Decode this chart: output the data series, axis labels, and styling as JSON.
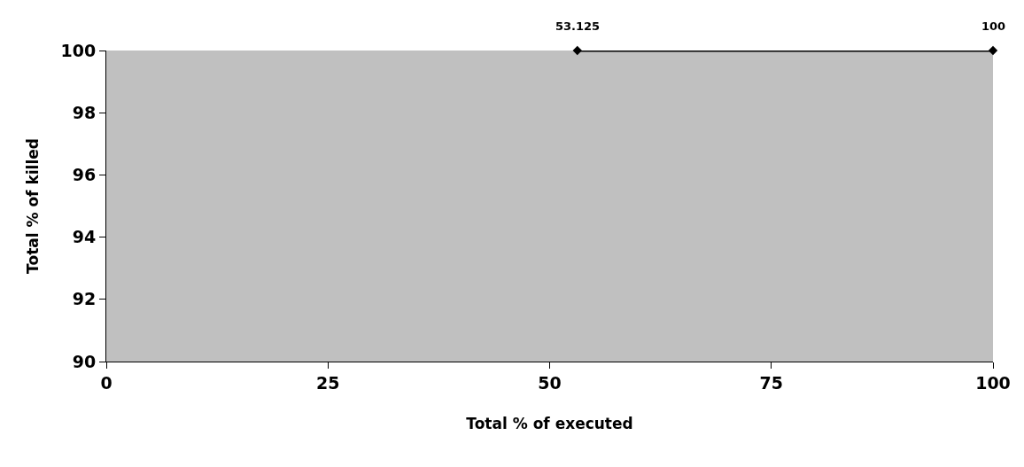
{
  "chart_data": {
    "type": "line",
    "xlabel": "Total % of executed",
    "ylabel": "Total % of killed",
    "x": [
      53.125,
      100
    ],
    "series": [
      {
        "color": "#000000",
        "values": [
          100,
          100
        ]
      }
    ],
    "annotations": [
      {
        "text": "53.125",
        "x": 53.125,
        "y": 100
      },
      {
        "text": "100",
        "x": 100,
        "y": 100
      }
    ],
    "xlim": [
      0,
      100
    ],
    "xticks": [
      0,
      25,
      50,
      75,
      100
    ],
    "ylim": [
      90,
      100
    ],
    "yticks": [
      90,
      92,
      94,
      96,
      98,
      100
    ],
    "grid": false,
    "marker": "diamond",
    "line_style": "solid"
  }
}
